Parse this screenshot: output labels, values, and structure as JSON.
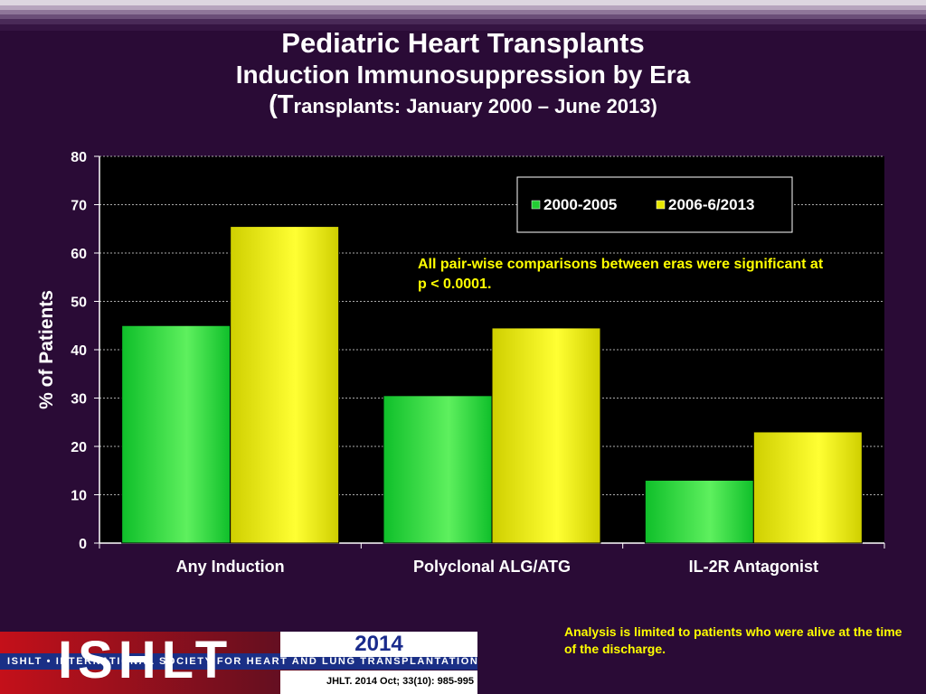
{
  "header": {
    "title": "Pediatric Heart Transplants",
    "subtitle": "Induction Immunosuppression by Era",
    "subtitle2_open": "(T",
    "subtitle2_rest": "ransplants: January 2000 – June 2013)"
  },
  "chart_data": {
    "type": "bar",
    "categories": [
      "Any Induction",
      "Polyclonal ALG/ATG",
      "IL-2R Antagonist"
    ],
    "series": [
      {
        "name": "2000-2005",
        "values": [
          45,
          30.5,
          13
        ],
        "color": "#22cc33"
      },
      {
        "name": "2006-6/2013",
        "values": [
          65.5,
          44.5,
          23
        ],
        "color": "#e6e600"
      }
    ],
    "ylabel": "% of Patients",
    "ylim": [
      0,
      80
    ],
    "yticks": [
      0,
      10,
      20,
      30,
      40,
      50,
      60,
      70,
      80
    ],
    "grid": true,
    "legend_position": "top-right",
    "annotation": "All pair-wise comparisons between eras were significant at p < 0.0001."
  },
  "footer": {
    "note": "Analysis is limited to patients who were alive at the time of the discharge.",
    "logo_year": "2014",
    "logo_name": "ISHLT",
    "logo_society": "ISHLT • INTERNATIONAL SOCIETY FOR HEART AND LUNG TRANSPLANTATION",
    "reference": "JHLT. 2014 Oct; 33(10): 985-995"
  }
}
